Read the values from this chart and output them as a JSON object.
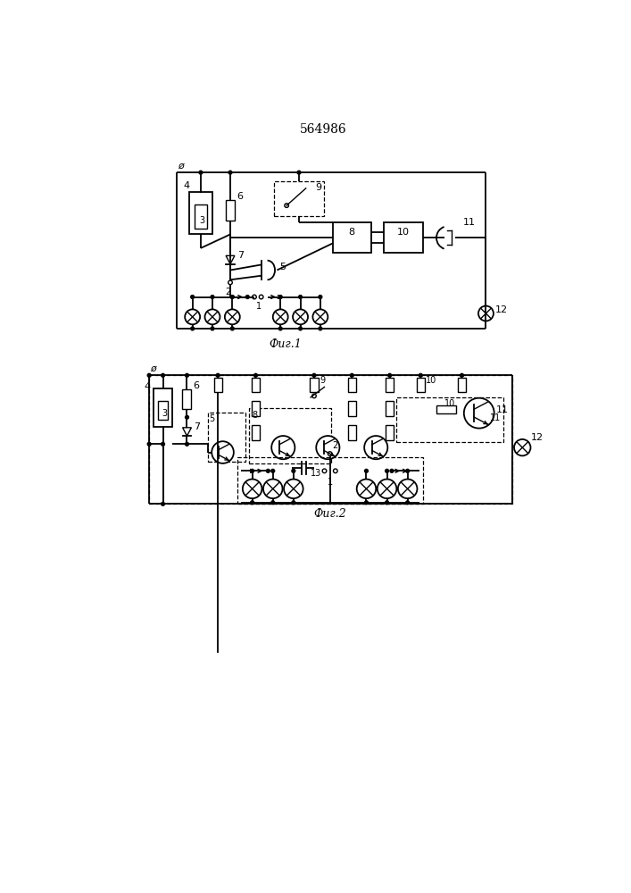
{
  "title": "564986",
  "fig1_label": "Фиг.1",
  "fig2_label": "Фиг.2",
  "bg_color": "#ffffff",
  "line_color": "#000000",
  "title_fontsize": 10,
  "label_fontsize": 9
}
